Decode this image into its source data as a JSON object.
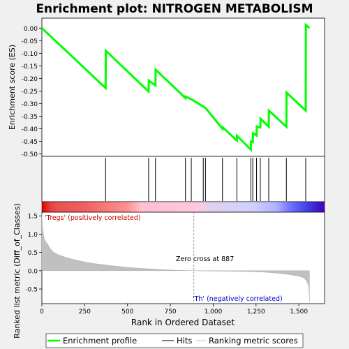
{
  "title": "Enrichment plot: NITROGEN METABOLISM",
  "chart_data": [
    {
      "type": "line",
      "ylabel": "Enrichment score (ES)",
      "ylim": [
        -0.5,
        0.02
      ],
      "xlim": [
        0,
        1562
      ],
      "yticks": [
        "0.00",
        "-0.05",
        "-0.10",
        "-0.15",
        "-0.20",
        "-0.25",
        "-0.30",
        "-0.35",
        "-0.40",
        "-0.45",
        "-0.50"
      ],
      "ytick_values": [
        0.0,
        -0.05,
        -0.1,
        -0.15,
        -0.2,
        -0.25,
        -0.3,
        -0.35,
        -0.4,
        -0.45,
        -0.5
      ],
      "color": "#00ff00",
      "series": [
        {
          "x": [
            0,
            372,
            373,
            623,
            624,
            663,
            664,
            838,
            839,
            872,
            873,
            942,
            943,
            955,
            956,
            1054,
            1055,
            1138,
            1139,
            1220,
            1221,
            1231,
            1232,
            1253,
            1254,
            1275,
            1276,
            1324,
            1325,
            1427,
            1428,
            1540,
            1541,
            1562
          ],
          "y": [
            0.0,
            -0.238,
            -0.09,
            -0.252,
            -0.208,
            -0.228,
            -0.165,
            -0.278,
            -0.272,
            -0.283,
            -0.283,
            -0.312,
            -0.312,
            -0.318,
            -0.318,
            -0.4,
            -0.394,
            -0.447,
            -0.428,
            -0.483,
            -0.45,
            -0.453,
            -0.418,
            -0.427,
            -0.391,
            -0.395,
            -0.36,
            -0.392,
            -0.328,
            -0.392,
            -0.256,
            -0.328,
            0.013,
            0.0
          ]
        }
      ]
    },
    {
      "type": "scatter",
      "name": "hits",
      "x": [
        372,
        623,
        663,
        838,
        872,
        942,
        955,
        1054,
        1138,
        1220,
        1231,
        1253,
        1275,
        1324,
        1427,
        1540
      ]
    },
    {
      "type": "area",
      "ylabel": "Ranked list metric (Diff_of_Classes)",
      "xlabel": "Rank in Ordered Dataset",
      "xlim": [
        0,
        1650
      ],
      "ylim": [
        -0.9,
        1.6
      ],
      "xticks": [
        "0",
        "250",
        "500",
        "750",
        "1,000",
        "1,250",
        "1,500"
      ],
      "xtick_values": [
        0,
        250,
        500,
        750,
        1000,
        1250,
        1500
      ],
      "yticks": [
        "1.5",
        "1.0",
        "0.5",
        "0.0",
        "-0.5"
      ],
      "ytick_values": [
        1.5,
        1.0,
        0.5,
        0.0,
        -0.5
      ],
      "color": "#c0c0c0",
      "x": [
        0,
        3,
        8,
        15,
        30,
        50,
        70,
        100,
        150,
        200,
        250,
        300,
        350,
        400,
        450,
        500,
        550,
        600,
        650,
        700,
        750,
        800,
        887,
        950,
        1000,
        1100,
        1200,
        1300,
        1350,
        1400,
        1450,
        1500,
        1530,
        1545,
        1552,
        1558,
        1562
      ],
      "values": [
        1.55,
        1.25,
        1.02,
        0.85,
        0.75,
        0.6,
        0.5,
        0.43,
        0.35,
        0.29,
        0.24,
        0.2,
        0.17,
        0.14,
        0.12,
        0.09,
        0.075,
        0.06,
        0.045,
        0.03,
        0.02,
        0.01,
        0.0,
        -0.005,
        -0.01,
        -0.015,
        -0.025,
        -0.04,
        -0.06,
        -0.08,
        -0.11,
        -0.15,
        -0.2,
        -0.28,
        -0.35,
        -0.45,
        -0.85
      ],
      "zero_cross": 887,
      "annotations": {
        "zero_cross": "Zero cross at 887",
        "positive": "'Tregs' (positively correlated)",
        "negative": "'Th' (negatively correlated)"
      }
    }
  ],
  "legend": {
    "position": "bottom",
    "items": [
      {
        "label": "Enrichment profile",
        "color": "#00ff00"
      },
      {
        "label": "Hits",
        "color": "#000000"
      },
      {
        "label": "Ranking metric scores",
        "color": "#c0c0c0"
      }
    ]
  }
}
